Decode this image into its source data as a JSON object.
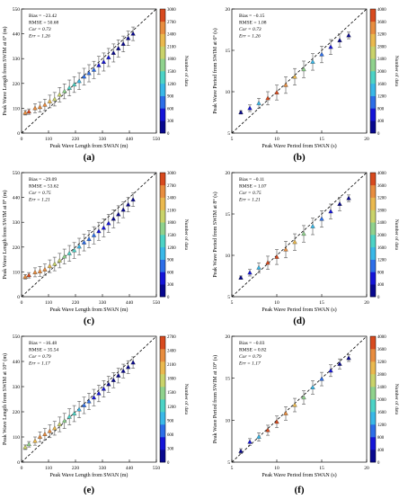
{
  "figure": {
    "colorbar_label": "Number of data",
    "colormap": [
      "#08088f",
      "#1515d8",
      "#2d6ee8",
      "#39b8e8",
      "#4cd3c6",
      "#8fd28d",
      "#c9d36a",
      "#eab94e",
      "#e88d3f",
      "#d84a1e"
    ]
  },
  "chart_data": [
    {
      "type": "scatter",
      "panel_label": "(a)",
      "xlabel": "Peak Wave Length from SWAN (m)",
      "ylabel": "Peak Wave Length from SWIM at 6° (m)",
      "xlim": [
        0,
        550
      ],
      "ylim": [
        0,
        550
      ],
      "xticks": [
        "0",
        "110",
        "220",
        "330",
        "440",
        "550"
      ],
      "yticks": [
        "0",
        "110",
        "220",
        "330",
        "440",
        "550"
      ],
      "colorbar": {
        "ticks": [
          "0",
          "300",
          "600",
          "900",
          "1200",
          "1500",
          "1800",
          "2100",
          "2400",
          "2700",
          "3000"
        ],
        "max": 3000
      },
      "stats": [
        "Bias = −23.42",
        "RMSE = 50.68",
        "Cor = 0.73",
        "Err = 1.26"
      ],
      "points": [
        {
          "x": 15,
          "y": 90,
          "err": 10,
          "c": 2400
        },
        {
          "x": 30,
          "y": 95,
          "err": 12,
          "c": 2700
        },
        {
          "x": 55,
          "y": 110,
          "err": 20,
          "c": 2600
        },
        {
          "x": 75,
          "y": 115,
          "err": 22,
          "c": 2500
        },
        {
          "x": 95,
          "y": 125,
          "err": 25,
          "c": 2400
        },
        {
          "x": 115,
          "y": 140,
          "err": 28,
          "c": 2200
        },
        {
          "x": 135,
          "y": 150,
          "err": 30,
          "c": 2000
        },
        {
          "x": 155,
          "y": 170,
          "err": 32,
          "c": 1800
        },
        {
          "x": 175,
          "y": 185,
          "err": 33,
          "c": 1600
        },
        {
          "x": 195,
          "y": 200,
          "err": 35,
          "c": 1400
        },
        {
          "x": 215,
          "y": 215,
          "err": 35,
          "c": 1200
        },
        {
          "x": 235,
          "y": 230,
          "err": 37,
          "c": 1000
        },
        {
          "x": 255,
          "y": 250,
          "err": 37,
          "c": 800
        },
        {
          "x": 275,
          "y": 265,
          "err": 38,
          "c": 700
        },
        {
          "x": 295,
          "y": 280,
          "err": 38,
          "c": 600
        },
        {
          "x": 315,
          "y": 300,
          "err": 40,
          "c": 500
        },
        {
          "x": 335,
          "y": 315,
          "err": 40,
          "c": 400
        },
        {
          "x": 355,
          "y": 335,
          "err": 40,
          "c": 300
        },
        {
          "x": 375,
          "y": 355,
          "err": 40,
          "c": 250
        },
        {
          "x": 395,
          "y": 375,
          "err": 38,
          "c": 200
        },
        {
          "x": 415,
          "y": 395,
          "err": 35,
          "c": 150
        },
        {
          "x": 435,
          "y": 420,
          "err": 32,
          "c": 100
        },
        {
          "x": 455,
          "y": 440,
          "err": 30,
          "c": 80
        }
      ]
    },
    {
      "type": "scatter",
      "panel_label": "(b)",
      "xlabel": "Peak Wave Period from SWAN (s)",
      "ylabel": "Peak Wave Period from SWIM at 6° (s)",
      "xlim": [
        5,
        20
      ],
      "ylim": [
        5,
        20
      ],
      "xticks": [
        "5",
        "10",
        "15",
        "20"
      ],
      "yticks": [
        "5",
        "10",
        "15",
        "20"
      ],
      "colorbar": {
        "ticks": [
          "0",
          "400",
          "800",
          "1200",
          "1600",
          "2000",
          "2400",
          "2800",
          "3200",
          "3600",
          "4000"
        ],
        "max": 4000
      },
      "stats": [
        "Bias = −0.15",
        "RMSE = 1.08",
        "Cor = 0.73",
        "Err = 1.26"
      ],
      "points": [
        {
          "x": 6,
          "y": 7.5,
          "err": 0.2,
          "c": 300
        },
        {
          "x": 7,
          "y": 8,
          "err": 0.4,
          "c": 600
        },
        {
          "x": 8,
          "y": 8.6,
          "err": 0.6,
          "c": 1500
        },
        {
          "x": 9,
          "y": 9.2,
          "err": 0.8,
          "c": 3600
        },
        {
          "x": 10,
          "y": 9.9,
          "err": 0.9,
          "c": 4000
        },
        {
          "x": 11,
          "y": 10.8,
          "err": 1.0,
          "c": 3400
        },
        {
          "x": 12,
          "y": 11.8,
          "err": 1.0,
          "c": 2800
        },
        {
          "x": 13,
          "y": 12.7,
          "err": 1.0,
          "c": 2000
        },
        {
          "x": 14,
          "y": 13.6,
          "err": 1.0,
          "c": 1500
        },
        {
          "x": 15,
          "y": 14.5,
          "err": 1.0,
          "c": 1000
        },
        {
          "x": 16,
          "y": 15.4,
          "err": 0.9,
          "c": 600
        },
        {
          "x": 17,
          "y": 16.2,
          "err": 0.8,
          "c": 300
        },
        {
          "x": 18,
          "y": 16.8,
          "err": 0.4,
          "c": 150
        }
      ]
    },
    {
      "type": "scatter",
      "panel_label": "(c)",
      "xlabel": "Peak Wave Length from SWAN (m)",
      "ylabel": "Peak Wave Length from SWIM at 8° (m)",
      "xlim": [
        0,
        550
      ],
      "ylim": [
        0,
        550
      ],
      "xticks": [
        "0",
        "110",
        "220",
        "330",
        "440",
        "550"
      ],
      "yticks": [
        "0",
        "110",
        "220",
        "330",
        "440",
        "550"
      ],
      "colorbar": {
        "ticks": [
          "0",
          "300",
          "600",
          "900",
          "1200",
          "1500",
          "1800",
          "2100",
          "2400",
          "2700",
          "3000"
        ],
        "max": 3000
      },
      "stats": [
        "Bias = −29.09",
        "RMSE = 53.62",
        "Cor = 0.75",
        "Err = 1.21"
      ],
      "points": [
        {
          "x": 15,
          "y": 88,
          "err": 10,
          "c": 2400
        },
        {
          "x": 30,
          "y": 95,
          "err": 12,
          "c": 2700
        },
        {
          "x": 55,
          "y": 108,
          "err": 20,
          "c": 2600
        },
        {
          "x": 75,
          "y": 112,
          "err": 22,
          "c": 2500
        },
        {
          "x": 95,
          "y": 120,
          "err": 25,
          "c": 2400
        },
        {
          "x": 115,
          "y": 135,
          "err": 28,
          "c": 2200
        },
        {
          "x": 135,
          "y": 145,
          "err": 30,
          "c": 2000
        },
        {
          "x": 155,
          "y": 160,
          "err": 32,
          "c": 1800
        },
        {
          "x": 175,
          "y": 178,
          "err": 33,
          "c": 1600
        },
        {
          "x": 195,
          "y": 192,
          "err": 35,
          "c": 1400
        },
        {
          "x": 215,
          "y": 205,
          "err": 35,
          "c": 1200
        },
        {
          "x": 235,
          "y": 222,
          "err": 37,
          "c": 1000
        },
        {
          "x": 255,
          "y": 240,
          "err": 37,
          "c": 800
        },
        {
          "x": 275,
          "y": 255,
          "err": 38,
          "c": 700
        },
        {
          "x": 295,
          "y": 272,
          "err": 38,
          "c": 600
        },
        {
          "x": 315,
          "y": 290,
          "err": 40,
          "c": 500
        },
        {
          "x": 335,
          "y": 305,
          "err": 40,
          "c": 400
        },
        {
          "x": 355,
          "y": 325,
          "err": 40,
          "c": 300
        },
        {
          "x": 375,
          "y": 345,
          "err": 40,
          "c": 250
        },
        {
          "x": 395,
          "y": 365,
          "err": 38,
          "c": 200
        },
        {
          "x": 415,
          "y": 385,
          "err": 35,
          "c": 150
        },
        {
          "x": 435,
          "y": 408,
          "err": 32,
          "c": 100
        },
        {
          "x": 455,
          "y": 430,
          "err": 30,
          "c": 80
        }
      ]
    },
    {
      "type": "scatter",
      "panel_label": "(d)",
      "xlabel": "Peak Wave Period from SWAN (s)",
      "ylabel": "Peak Wave Period from SWIM at 8° (s)",
      "xlim": [
        5,
        20
      ],
      "ylim": [
        5,
        20
      ],
      "xticks": [
        "5",
        "10",
        "15",
        "20"
      ],
      "yticks": [
        "5",
        "10",
        "15",
        "20"
      ],
      "colorbar": {
        "ticks": [
          "0",
          "400",
          "800",
          "1200",
          "1600",
          "2000",
          "2400",
          "2800",
          "3200",
          "3600",
          "4000"
        ],
        "max": 4000
      },
      "stats": [
        "Bias = −0.11",
        "RMSE = 1.07",
        "Cor = 0.75",
        "Err = 1.21"
      ],
      "points": [
        {
          "x": 6,
          "y": 7.3,
          "err": 0.2,
          "c": 300
        },
        {
          "x": 7,
          "y": 7.9,
          "err": 0.4,
          "c": 600
        },
        {
          "x": 8,
          "y": 8.5,
          "err": 0.6,
          "c": 1500
        },
        {
          "x": 9,
          "y": 9.1,
          "err": 0.8,
          "c": 3600
        },
        {
          "x": 10,
          "y": 9.8,
          "err": 0.9,
          "c": 4000
        },
        {
          "x": 11,
          "y": 10.7,
          "err": 1.0,
          "c": 3400
        },
        {
          "x": 12,
          "y": 11.6,
          "err": 1.0,
          "c": 2800
        },
        {
          "x": 13,
          "y": 12.6,
          "err": 1.0,
          "c": 2000
        },
        {
          "x": 14,
          "y": 13.5,
          "err": 1.0,
          "c": 1500
        },
        {
          "x": 15,
          "y": 14.4,
          "err": 1.0,
          "c": 1000
        },
        {
          "x": 16,
          "y": 15.3,
          "err": 0.9,
          "c": 600
        },
        {
          "x": 17,
          "y": 16.2,
          "err": 0.8,
          "c": 300
        },
        {
          "x": 18,
          "y": 16.9,
          "err": 0.4,
          "c": 150
        }
      ]
    },
    {
      "type": "scatter",
      "panel_label": "(e)",
      "xlabel": "Peak Wave Length from SWAN (m)",
      "ylabel": "Peak Wave Length from SWIM at 10° (m)",
      "xlim": [
        0,
        550
      ],
      "ylim": [
        0,
        550
      ],
      "xticks": [
        "0",
        "110",
        "220",
        "330",
        "440",
        "550"
      ],
      "yticks": [
        "0",
        "110",
        "220",
        "330",
        "440",
        "550"
      ],
      "colorbar": {
        "ticks": [
          "0",
          "300",
          "600",
          "900",
          "1200",
          "1500",
          "1800",
          "2100",
          "2400",
          "2700"
        ],
        "max": 2700
      },
      "stats": [
        "Bias = −16.48",
        "RMSE = 35.54",
        "Cor = 0.79",
        "Err = 1.17"
      ],
      "points": [
        {
          "x": 15,
          "y": 65,
          "err": 10,
          "c": 1800
        },
        {
          "x": 30,
          "y": 78,
          "err": 12,
          "c": 1600
        },
        {
          "x": 55,
          "y": 92,
          "err": 18,
          "c": 2100
        },
        {
          "x": 75,
          "y": 110,
          "err": 22,
          "c": 2400
        },
        {
          "x": 95,
          "y": 122,
          "err": 25,
          "c": 2300
        },
        {
          "x": 115,
          "y": 135,
          "err": 28,
          "c": 2200
        },
        {
          "x": 135,
          "y": 148,
          "err": 30,
          "c": 2000
        },
        {
          "x": 155,
          "y": 165,
          "err": 32,
          "c": 1700
        },
        {
          "x": 175,
          "y": 180,
          "err": 33,
          "c": 1500
        },
        {
          "x": 195,
          "y": 198,
          "err": 35,
          "c": 1300
        },
        {
          "x": 215,
          "y": 212,
          "err": 35,
          "c": 1100
        },
        {
          "x": 235,
          "y": 230,
          "err": 36,
          "c": 900
        },
        {
          "x": 255,
          "y": 248,
          "err": 36,
          "c": 700
        },
        {
          "x": 275,
          "y": 265,
          "err": 36,
          "c": 600
        },
        {
          "x": 295,
          "y": 282,
          "err": 36,
          "c": 500
        },
        {
          "x": 315,
          "y": 300,
          "err": 36,
          "c": 400
        },
        {
          "x": 335,
          "y": 320,
          "err": 36,
          "c": 300
        },
        {
          "x": 355,
          "y": 340,
          "err": 35,
          "c": 250
        },
        {
          "x": 375,
          "y": 358,
          "err": 33,
          "c": 200
        },
        {
          "x": 395,
          "y": 378,
          "err": 32,
          "c": 150
        },
        {
          "x": 415,
          "y": 398,
          "err": 30,
          "c": 100
        },
        {
          "x": 435,
          "y": 415,
          "err": 28,
          "c": 80
        },
        {
          "x": 455,
          "y": 435,
          "err": 25,
          "c": 50
        }
      ]
    },
    {
      "type": "scatter",
      "panel_label": "(f)",
      "xlabel": "Peak Wave Period from SWAN (s)",
      "ylabel": "Peak Wave Period from SWIM at 10° (s)",
      "xlim": [
        5,
        20
      ],
      "ylim": [
        5,
        20
      ],
      "xticks": [
        "5",
        "10",
        "15",
        "20"
      ],
      "yticks": [
        "5",
        "10",
        "15",
        "20"
      ],
      "colorbar": {
        "ticks": [
          "0",
          "400",
          "800",
          "1200",
          "1600",
          "2000",
          "2400",
          "2800",
          "3200",
          "3600",
          "4000"
        ],
        "max": 4000
      },
      "stats": [
        "Bias = −0.03",
        "RMSE = 0.82",
        "Cor = 0.79",
        "Err = 1.17"
      ],
      "points": [
        {
          "x": 6,
          "y": 6.3,
          "err": 0.3,
          "c": 300
        },
        {
          "x": 7,
          "y": 7.4,
          "err": 0.4,
          "c": 600
        },
        {
          "x": 8,
          "y": 8.0,
          "err": 0.5,
          "c": 1500
        },
        {
          "x": 9,
          "y": 8.8,
          "err": 0.6,
          "c": 3600
        },
        {
          "x": 10,
          "y": 9.8,
          "err": 0.7,
          "c": 4000
        },
        {
          "x": 11,
          "y": 10.8,
          "err": 0.8,
          "c": 3400
        },
        {
          "x": 12,
          "y": 11.8,
          "err": 0.8,
          "c": 2800
        },
        {
          "x": 13,
          "y": 12.7,
          "err": 0.8,
          "c": 2000
        },
        {
          "x": 14,
          "y": 13.9,
          "err": 0.8,
          "c": 1500
        },
        {
          "x": 15,
          "y": 14.9,
          "err": 0.8,
          "c": 1000
        },
        {
          "x": 16,
          "y": 15.9,
          "err": 0.7,
          "c": 600
        },
        {
          "x": 17,
          "y": 16.7,
          "err": 0.6,
          "c": 300
        },
        {
          "x": 18,
          "y": 17.4,
          "err": 0.4,
          "c": 150
        }
      ]
    }
  ]
}
